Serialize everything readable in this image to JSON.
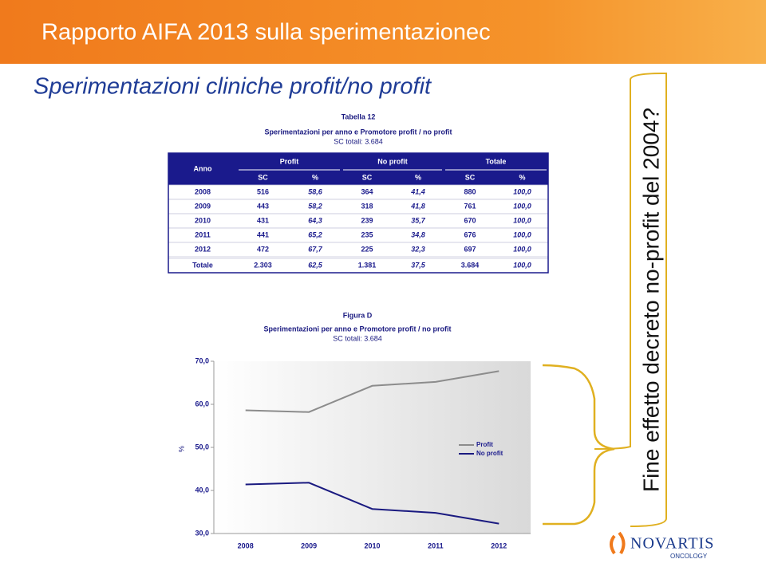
{
  "header": {
    "title": "Rapporto AIFA 2013 sulla sperimentazionec",
    "subtitle": "Sperimentazioni cliniche profit/no profit"
  },
  "table": {
    "caption": "Tabella 12",
    "title": "Sperimentazioni per anno e Promotore profit / no profit",
    "subtitle": "SC totali: 3.684",
    "header_top": [
      "Anno",
      "Profit",
      "No profit",
      "Totale"
    ],
    "header_sub": [
      "SC",
      "%",
      "SC",
      "%",
      "SC",
      "%"
    ],
    "rows": [
      [
        "2008",
        "516",
        "58,6",
        "364",
        "41,4",
        "880",
        "100,0"
      ],
      [
        "2009",
        "443",
        "58,2",
        "318",
        "41,8",
        "761",
        "100,0"
      ],
      [
        "2010",
        "431",
        "64,3",
        "239",
        "35,7",
        "670",
        "100,0"
      ],
      [
        "2011",
        "441",
        "65,2",
        "235",
        "34,8",
        "676",
        "100,0"
      ],
      [
        "2012",
        "472",
        "67,7",
        "225",
        "32,3",
        "697",
        "100,0"
      ],
      [
        "Totale",
        "2.303",
        "62,5",
        "1.381",
        "37,5",
        "3.684",
        "100,0"
      ]
    ]
  },
  "chart_data": {
    "type": "line",
    "caption": "Figura D",
    "title": "Sperimentazioni per anno e Promotore profit / no profit",
    "subtitle": "SC totali: 3.684",
    "y_label": "%",
    "categories": [
      "2008",
      "2009",
      "2010",
      "2011",
      "2012"
    ],
    "series": [
      {
        "name": "Profit",
        "color": "#8c8c8c",
        "values": [
          58.6,
          58.2,
          64.3,
          65.2,
          67.7
        ]
      },
      {
        "name": "No profit",
        "color": "#1a1a80",
        "values": [
          41.4,
          41.8,
          35.7,
          34.8,
          32.3
        ]
      }
    ],
    "ylim": [
      30,
      70
    ],
    "yticks": [
      {
        "value": 30,
        "label": "30,0"
      },
      {
        "value": 40,
        "label": "40,0"
      },
      {
        "value": 50,
        "label": "50,0"
      },
      {
        "value": 60,
        "label": "60,0"
      },
      {
        "value": 70,
        "label": "70,0"
      }
    ],
    "legend": "right"
  },
  "side_note": "Fine effetto decreto no-profit del 2004?",
  "logo": {
    "name": "NOVARTIS",
    "division": "ONCOLOGY"
  }
}
